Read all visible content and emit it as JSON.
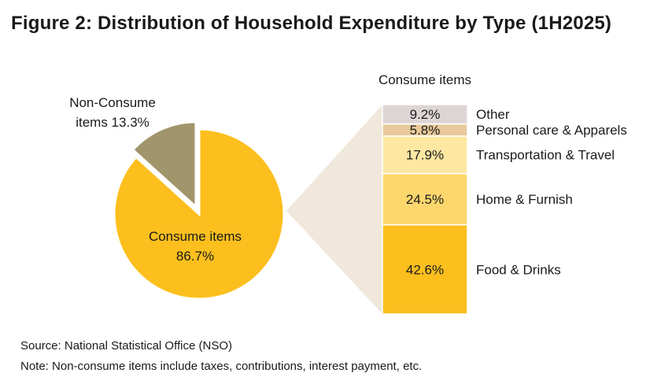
{
  "title": "Figure 2:  Distribution of Household Expenditure by Type (1H2025)",
  "source": "Source: National Statistical Office (NSO)",
  "note": "Note: Non-consume items include taxes, contributions, interest payment, etc.",
  "colors": {
    "consume": "#fcbf1e",
    "non_consume": "#a0956b",
    "connector": "#f0e8dc",
    "food": "#fcbf1e",
    "home": "#fdd66c",
    "transport": "#fde7a1",
    "personal": "#e9c99a",
    "other": "#ddd5d5"
  },
  "chart_data": [
    {
      "type": "pie",
      "title": "",
      "slices": [
        {
          "name": "Consume items",
          "value": 86.7,
          "label_lines": [
            "Consume items",
            "86.7%"
          ]
        },
        {
          "name": "Non-Consume items",
          "value": 13.3,
          "label_lines": [
            "Non-Consume",
            "items 13.3%"
          ]
        }
      ]
    },
    {
      "type": "bar",
      "stacked": true,
      "title": "Consume items",
      "segments": [
        {
          "name": "Food & Drinks",
          "value": 42.6,
          "label": "42.6%"
        },
        {
          "name": "Home & Furnish",
          "value": 24.5,
          "label": "24.5%"
        },
        {
          "name": "Transportation & Travel",
          "value": 17.9,
          "label": "17.9%"
        },
        {
          "name": "Personal care & Apparels",
          "value": 5.8,
          "label": "5.8%"
        },
        {
          "name": "Other",
          "value": 9.2,
          "label": "9.2%"
        }
      ]
    }
  ]
}
